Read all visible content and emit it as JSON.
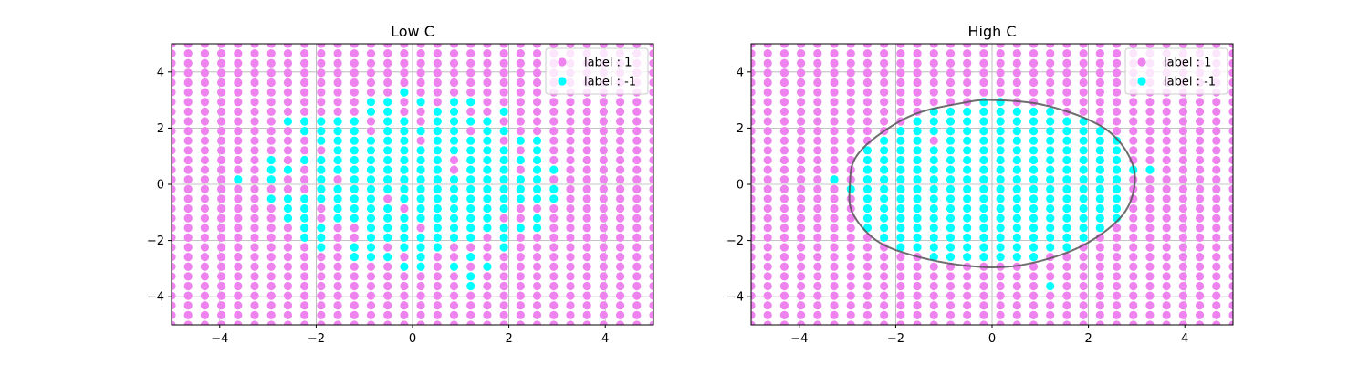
{
  "colors": {
    "positive": "#ee82ee",
    "negative": "#00ffff",
    "boundary": "#555555",
    "grid": "#b0b0b0"
  },
  "chart_data": [
    {
      "type": "scatter",
      "title": "Low C",
      "xlabel": "",
      "ylabel": "",
      "xlim": [
        -5,
        5
      ],
      "ylim": [
        -5,
        5
      ],
      "xticks": [
        -4,
        -2,
        0,
        2,
        4
      ],
      "yticks": [
        -4,
        -2,
        0,
        2,
        4
      ],
      "grid": true,
      "legend_position": "top-right",
      "grid_points": {
        "x_start": -5,
        "x_stop": 5,
        "count": 30
      },
      "series": [
        {
          "name": "label : 1",
          "value": 1,
          "color": "#ee82ee"
        },
        {
          "name": "label : -1",
          "value": -1,
          "color": "#00ffff"
        }
      ],
      "negative_region": "irregular patchy region, roughly a disk of radius 3 centered near (0, 0)",
      "decision_boundary": false
    },
    {
      "type": "scatter",
      "title": "High C",
      "xlabel": "",
      "ylabel": "",
      "xlim": [
        -5,
        5
      ],
      "ylim": [
        -5,
        5
      ],
      "xticks": [
        -4,
        -2,
        0,
        2,
        4
      ],
      "yticks": [
        -4,
        -2,
        0,
        2,
        4
      ],
      "grid": true,
      "legend_position": "top-right",
      "grid_points": {
        "x_start": -5,
        "x_stop": 5,
        "count": 30
      },
      "series": [
        {
          "name": "label : 1",
          "value": 1,
          "color": "#ee82ee"
        },
        {
          "name": "label : -1",
          "value": -1,
          "color": "#00ffff"
        }
      ],
      "negative_region": "points inside a closed decision boundary of radius about 3 centered near (0, 0)",
      "decision_boundary": true,
      "boundary_points": [
        [
          0,
          3.0
        ],
        [
          1,
          2.85
        ],
        [
          2,
          2.3
        ],
        [
          2.6,
          1.6
        ],
        [
          2.95,
          0.5
        ],
        [
          2.85,
          -0.7
        ],
        [
          2.4,
          -1.6
        ],
        [
          1.6,
          -2.4
        ],
        [
          0.5,
          -2.9
        ],
        [
          -0.5,
          -2.9
        ],
        [
          -1.6,
          -2.55
        ],
        [
          -2.4,
          -2.0
        ],
        [
          -2.9,
          -1.0
        ],
        [
          -2.95,
          0.0
        ],
        [
          -2.85,
          0.9
        ],
        [
          -2.4,
          1.7
        ],
        [
          -1.6,
          2.5
        ],
        [
          -0.6,
          2.9
        ]
      ]
    }
  ]
}
